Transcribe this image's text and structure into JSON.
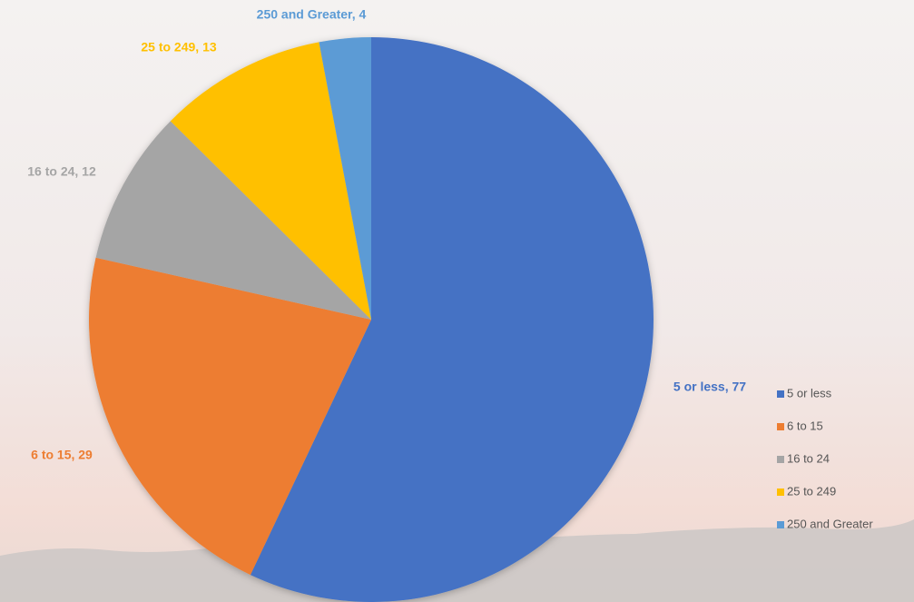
{
  "chart_data": {
    "type": "pie",
    "categories": [
      "5 or less",
      "6 to 15",
      "16 to 24",
      "25 to 249",
      "250 and Greater"
    ],
    "values": [
      77,
      29,
      12,
      13,
      4
    ],
    "value_labels": [
      "5 or less, 77",
      "6 to 15, 29",
      "16 to 24, 12",
      "25 to 249, 13",
      "250 and Greater, 4"
    ],
    "colors": [
      "#4472c4",
      "#ed7d31",
      "#a5a5a5",
      "#ffc000",
      "#5b9bd5"
    ],
    "legend": "right"
  }
}
